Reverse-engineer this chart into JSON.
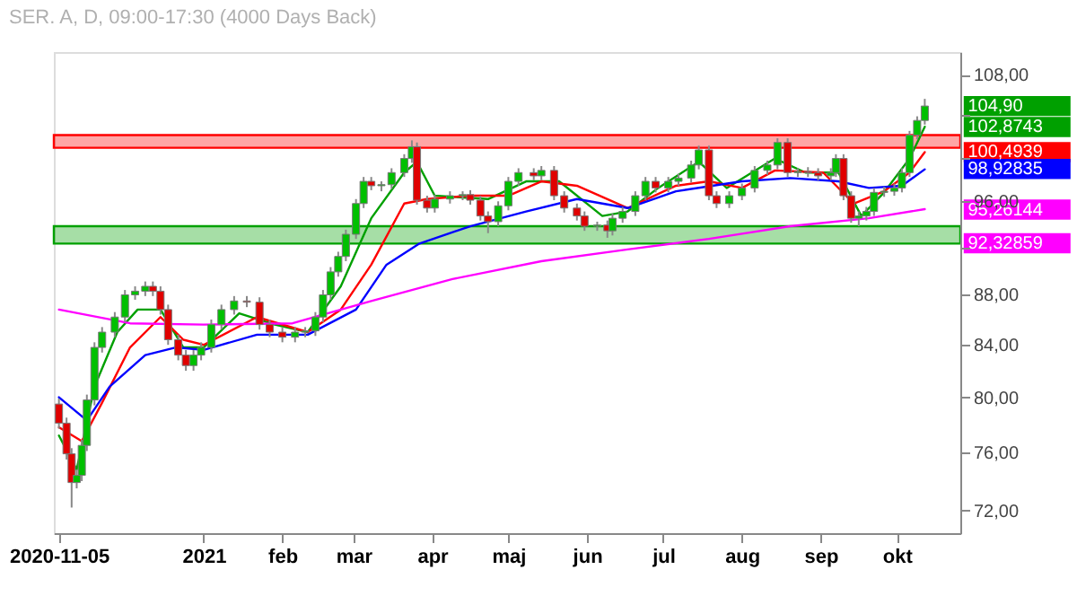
{
  "chart_data": {
    "type": "candlestick",
    "title": "SER. A, D, 09:00-17:30 (4000 Days Back)",
    "x": [
      "2020-11-05",
      "2020-11-08",
      "2020-11-10",
      "2020-11-12",
      "2020-11-14",
      "2020-11-16",
      "2020-11-19",
      "2020-11-22",
      "2020-11-27",
      "2020-12-01",
      "2020-12-05",
      "2020-12-09",
      "2020-12-12",
      "2020-12-15",
      "2020-12-18",
      "2020-12-22",
      "2020-12-25",
      "2020-12-28",
      "2020-12-31",
      "2021-01-04",
      "2021-01-08",
      "2021-01-13",
      "2021-01-18",
      "2021-01-23",
      "2021-01-27",
      "2021-02-01",
      "2021-02-06",
      "2021-02-10",
      "2021-02-14",
      "2021-02-17",
      "2021-02-20",
      "2021-02-23",
      "2021-02-26",
      "2021-03-02",
      "2021-03-05",
      "2021-03-08",
      "2021-03-12",
      "2021-03-16",
      "2021-03-21",
      "2021-03-24",
      "2021-03-26",
      "2021-03-30",
      "2021-04-02",
      "2021-04-08",
      "2021-04-13",
      "2021-04-16",
      "2021-04-20",
      "2021-04-23",
      "2021-04-27",
      "2021-05-01",
      "2021-05-05",
      "2021-05-11",
      "2021-05-14",
      "2021-05-19",
      "2021-05-23",
      "2021-05-28",
      "2021-05-31",
      "2021-06-05",
      "2021-06-09",
      "2021-06-11",
      "2021-06-15",
      "2021-06-20",
      "2021-06-24",
      "2021-06-28",
      "2021-07-03",
      "2021-07-07",
      "2021-07-12",
      "2021-07-15",
      "2021-07-19",
      "2021-07-22",
      "2021-07-27",
      "2021-08-01",
      "2021-08-06",
      "2021-08-11",
      "2021-08-15",
      "2021-08-19",
      "2021-08-23",
      "2021-08-27",
      "2021-08-31",
      "2021-09-05",
      "2021-09-07",
      "2021-09-10",
      "2021-09-13",
      "2021-09-16",
      "2021-09-19",
      "2021-09-22",
      "2021-09-26",
      "2021-09-30",
      "2021-10-03",
      "2021-10-06",
      "2021-10-09",
      "2021-10-12"
    ],
    "ohlc": [
      [
        79.5,
        79.9,
        77.7,
        78.1
      ],
      [
        78.1,
        78.5,
        75.5,
        75.9
      ],
      [
        75.9,
        76.3,
        72.2,
        73.9
      ],
      [
        73.9,
        74.8,
        73.5,
        74.4
      ],
      [
        74.4,
        76.9,
        74.0,
        76.5
      ],
      [
        76.5,
        80.2,
        76.1,
        79.8
      ],
      [
        79.8,
        84.2,
        79.4,
        83.8
      ],
      [
        83.8,
        85.4,
        83.4,
        85.0
      ],
      [
        85.0,
        86.6,
        84.6,
        86.2
      ],
      [
        86.2,
        88.4,
        85.8,
        88.0
      ],
      [
        88.0,
        88.7,
        87.6,
        88.3
      ],
      [
        88.3,
        89.1,
        87.9,
        88.7
      ],
      [
        88.7,
        89.1,
        87.9,
        88.3
      ],
      [
        88.3,
        88.7,
        86.4,
        86.8
      ],
      [
        86.8,
        87.2,
        84.0,
        84.4
      ],
      [
        84.4,
        84.8,
        82.8,
        83.2
      ],
      [
        83.2,
        83.6,
        82.0,
        82.4
      ],
      [
        82.4,
        83.6,
        82.0,
        83.2
      ],
      [
        83.2,
        84.2,
        82.8,
        83.8
      ],
      [
        83.8,
        86.0,
        83.4,
        85.6
      ],
      [
        85.6,
        87.2,
        85.2,
        86.8
      ],
      [
        86.8,
        87.9,
        86.4,
        87.5
      ],
      [
        87.5,
        87.9,
        87.0,
        87.4
      ],
      [
        87.4,
        87.8,
        85.2,
        85.6
      ],
      [
        85.6,
        86.0,
        84.6,
        85.0
      ],
      [
        85.0,
        85.4,
        84.2,
        84.6
      ],
      [
        84.6,
        85.4,
        84.2,
        85.0
      ],
      [
        85.0,
        85.4,
        84.6,
        85.1
      ],
      [
        85.1,
        86.6,
        84.7,
        86.2
      ],
      [
        86.2,
        88.4,
        85.8,
        88.0
      ],
      [
        88.0,
        90.3,
        87.6,
        89.9
      ],
      [
        89.9,
        91.6,
        89.5,
        91.2
      ],
      [
        91.2,
        93.5,
        90.8,
        93.1
      ],
      [
        93.1,
        96.2,
        92.7,
        95.8
      ],
      [
        95.8,
        98.2,
        95.4,
        97.8
      ],
      [
        97.8,
        98.2,
        97.0,
        97.4
      ],
      [
        97.4,
        97.8,
        96.9,
        97.5
      ],
      [
        97.5,
        99.0,
        97.1,
        98.6
      ],
      [
        98.6,
        100.3,
        98.2,
        99.9
      ],
      [
        99.9,
        101.6,
        99.5,
        101.0
      ],
      [
        101.0,
        101.4,
        95.7,
        96.1
      ],
      [
        96.1,
        96.5,
        95.0,
        95.4
      ],
      [
        95.4,
        96.6,
        95.0,
        96.2
      ],
      [
        96.2,
        96.9,
        95.8,
        96.5
      ],
      [
        96.5,
        96.9,
        96.1,
        96.6
      ],
      [
        96.6,
        97.0,
        95.7,
        96.1
      ],
      [
        96.1,
        96.5,
        94.3,
        94.7
      ],
      [
        94.7,
        95.1,
        93.2,
        94.2
      ],
      [
        94.2,
        96.0,
        93.8,
        95.6
      ],
      [
        95.6,
        98.2,
        95.2,
        97.8
      ],
      [
        97.8,
        99.0,
        97.4,
        98.6
      ],
      [
        98.6,
        99.0,
        97.9,
        98.3
      ],
      [
        98.3,
        99.2,
        97.9,
        98.8
      ],
      [
        98.8,
        99.2,
        96.1,
        96.5
      ],
      [
        96.5,
        96.9,
        95.0,
        95.4
      ],
      [
        95.4,
        95.8,
        94.3,
        94.7
      ],
      [
        94.7,
        95.1,
        93.4,
        93.8
      ],
      [
        93.8,
        94.2,
        93.4,
        93.9
      ],
      [
        93.9,
        94.3,
        92.8,
        93.4
      ],
      [
        93.4,
        94.9,
        93.0,
        94.5
      ],
      [
        94.5,
        95.5,
        94.1,
        95.1
      ],
      [
        95.1,
        96.9,
        94.7,
        96.5
      ],
      [
        96.5,
        98.2,
        96.1,
        97.8
      ],
      [
        97.8,
        98.2,
        96.8,
        97.2
      ],
      [
        97.2,
        98.2,
        96.8,
        97.8
      ],
      [
        97.8,
        98.5,
        97.4,
        98.1
      ],
      [
        98.1,
        99.7,
        97.7,
        99.3
      ],
      [
        99.3,
        101.1,
        98.9,
        100.7
      ],
      [
        100.7,
        101.1,
        96.1,
        96.5
      ],
      [
        96.5,
        96.9,
        95.4,
        95.8
      ],
      [
        95.8,
        96.9,
        95.4,
        96.5
      ],
      [
        96.5,
        97.6,
        96.1,
        97.2
      ],
      [
        97.2,
        99.2,
        96.8,
        98.8
      ],
      [
        98.8,
        99.7,
        98.4,
        99.3
      ],
      [
        99.3,
        101.8,
        98.9,
        101.4
      ],
      [
        101.4,
        101.8,
        98.2,
        98.6
      ],
      [
        98.6,
        99.0,
        98.2,
        98.7
      ],
      [
        98.7,
        99.1,
        98.2,
        98.6
      ],
      [
        98.6,
        99.0,
        97.9,
        98.3
      ],
      [
        98.3,
        99.0,
        97.9,
        98.6
      ],
      [
        98.6,
        100.3,
        98.2,
        99.9
      ],
      [
        99.9,
        100.3,
        96.1,
        96.5
      ],
      [
        96.5,
        96.9,
        94.1,
        94.5
      ],
      [
        94.5,
        95.1,
        93.8,
        94.7
      ],
      [
        94.7,
        95.5,
        94.3,
        95.1
      ],
      [
        95.1,
        97.2,
        94.7,
        96.8
      ],
      [
        96.8,
        97.3,
        96.4,
        96.9
      ],
      [
        96.9,
        97.6,
        96.5,
        97.2
      ],
      [
        97.2,
        99.0,
        96.8,
        98.6
      ],
      [
        98.6,
        102.5,
        98.2,
        102.1
      ],
      [
        102.1,
        103.9,
        101.7,
        103.5
      ],
      [
        103.5,
        105.6,
        103.1,
        104.9
      ]
    ],
    "series": [
      {
        "type": "line",
        "color": "#00a000",
        "x": [
          "2020-11-05",
          "2020-11-12",
          "2020-11-19",
          "2020-11-28",
          "2020-12-06",
          "2020-12-15",
          "2020-12-24",
          "2021-01-01",
          "2021-01-15",
          "2021-01-29",
          "2021-02-11",
          "2021-02-24",
          "2021-03-08",
          "2021-03-21",
          "2021-03-26",
          "2021-04-02",
          "2021-04-23",
          "2021-05-08",
          "2021-05-21",
          "2021-06-07",
          "2021-06-17",
          "2021-06-29",
          "2021-07-15",
          "2021-07-26",
          "2021-08-14",
          "2021-08-26",
          "2021-09-08",
          "2021-09-17",
          "2021-09-26",
          "2021-10-06",
          "2021-10-12"
        ],
        "values": [
          77.2,
          74.8,
          80.8,
          85.0,
          86.8,
          86.8,
          83.8,
          83.8,
          86.5,
          85.6,
          85.0,
          88.7,
          94.5,
          98.6,
          99.6,
          96.5,
          96.2,
          97.8,
          97.8,
          94.7,
          95.1,
          97.2,
          99.6,
          97.2,
          99.9,
          98.6,
          98.6,
          94.7,
          96.8,
          99.9,
          102.9
        ]
      },
      {
        "type": "line",
        "color": "#ff0000",
        "x": [
          "2020-11-05",
          "2020-11-14",
          "2020-11-22",
          "2020-12-03",
          "2020-12-15",
          "2020-12-24",
          "2021-01-01",
          "2021-01-22",
          "2021-02-11",
          "2021-02-24",
          "2021-03-08",
          "2021-03-21",
          "2021-03-30",
          "2021-04-16",
          "2021-05-01",
          "2021-05-14",
          "2021-05-28",
          "2021-06-17",
          "2021-07-06",
          "2021-07-19",
          "2021-08-01",
          "2021-08-14",
          "2021-09-02",
          "2021-09-14",
          "2021-09-26",
          "2021-10-06",
          "2021-10-12"
        ],
        "values": [
          77.8,
          76.8,
          79.6,
          83.8,
          86.2,
          84.4,
          84.0,
          86.2,
          85.0,
          86.8,
          90.5,
          95.8,
          96.2,
          96.5,
          96.5,
          97.8,
          97.4,
          95.4,
          97.4,
          97.8,
          97.2,
          98.8,
          98.6,
          95.8,
          96.9,
          98.6,
          100.5
        ]
      },
      {
        "type": "line",
        "color": "#0000ff",
        "x": [
          "2020-11-05",
          "2020-11-16",
          "2020-11-25",
          "2020-12-09",
          "2020-12-21",
          "2021-01-01",
          "2021-01-22",
          "2021-02-11",
          "2021-03-02",
          "2021-03-14",
          "2021-03-27",
          "2021-04-16",
          "2021-05-08",
          "2021-05-28",
          "2021-06-17",
          "2021-07-06",
          "2021-08-01",
          "2021-08-20",
          "2021-09-08",
          "2021-09-20",
          "2021-10-03",
          "2021-10-12"
        ],
        "values": [
          80.0,
          78.3,
          80.8,
          83.2,
          83.8,
          83.6,
          84.8,
          84.8,
          86.8,
          90.5,
          92.3,
          93.8,
          95.1,
          96.2,
          95.4,
          96.9,
          97.8,
          98.1,
          97.8,
          97.2,
          97.4,
          98.9
        ]
      },
      {
        "type": "line",
        "color": "#ff00ff",
        "x": [
          "2020-11-05",
          "2020-12-03",
          "2021-01-01",
          "2021-02-05",
          "2021-03-08",
          "2021-04-09",
          "2021-05-14",
          "2021-06-17",
          "2021-07-19",
          "2021-08-20",
          "2021-09-20",
          "2021-10-12"
        ],
        "values": [
          86.8,
          85.7,
          85.6,
          85.7,
          87.5,
          89.3,
          90.8,
          91.8,
          92.7,
          93.8,
          94.5,
          95.3
        ]
      }
    ],
    "bands": [
      {
        "axis": "y",
        "from": 100.9,
        "to": 102.1,
        "color": "#ff0000"
      },
      {
        "axis": "y",
        "from": 92.3,
        "to": 93.8,
        "color": "#00a000"
      }
    ],
    "annotations": [
      {
        "text": "104,90",
        "x": "2021-10-12",
        "y": 104.9
      },
      {
        "text": "102,8743",
        "x": "2021-10-12",
        "y": 102.8743
      },
      {
        "text": "100,4939",
        "x": "2021-10-12",
        "y": 100.4939
      },
      {
        "text": "98,92835",
        "x": "2021-10-12",
        "y": 98.92835
      },
      {
        "text": "95,26144",
        "x": "2021-10-12",
        "y": 95.26144
      },
      {
        "text": "92,32859",
        "x": "2021-10-12",
        "y": 92.32859
      }
    ],
    "log": true,
    "xlim": [
      "2020-11-03",
      "2021-10-26"
    ],
    "xticks": [
      {
        "value": "2020-11-05",
        "label": "2020-11-05"
      },
      {
        "value": "2021-01-01",
        "label": "2021"
      },
      {
        "value": "2021-02-01",
        "label": "feb"
      },
      {
        "value": "2021-03-01",
        "label": "mar"
      },
      {
        "value": "2021-04-01",
        "label": "apr"
      },
      {
        "value": "2021-05-01",
        "label": "maj"
      },
      {
        "value": "2021-06-01",
        "label": "jun"
      },
      {
        "value": "2021-07-01",
        "label": "jul"
      },
      {
        "value": "2021-08-01",
        "label": "aug"
      },
      {
        "value": "2021-09-01",
        "label": "sep"
      },
      {
        "value": "2021-10-01",
        "label": "okt"
      }
    ],
    "ylim": [
      70.5,
      110.3
    ],
    "yticks": [
      {
        "value": 72,
        "label": "72,00"
      },
      {
        "value": 76,
        "label": "76,00"
      },
      {
        "value": 80,
        "label": "80,00"
      },
      {
        "value": 84,
        "label": "84,00"
      },
      {
        "value": 88,
        "label": "88,00"
      },
      {
        "value": 92,
        "label": null
      },
      {
        "value": 96,
        "label": "96,00"
      },
      {
        "value": 100,
        "label": null
      },
      {
        "value": 104,
        "label": null
      },
      {
        "value": 108,
        "label": "108,00"
      }
    ],
    "grid": false
  }
}
